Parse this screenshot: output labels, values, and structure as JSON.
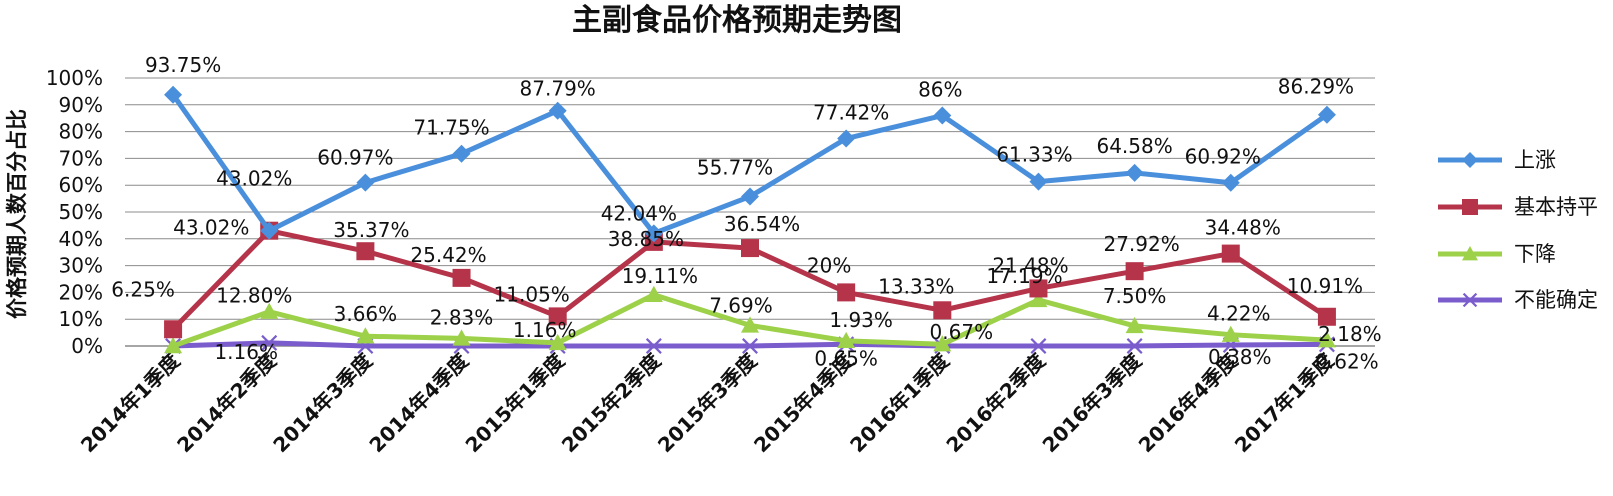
{
  "chart_data": {
    "type": "line",
    "title": "主副食品价格预期走势图",
    "xlabel": "",
    "ylabel": "价格预期人数百分占比",
    "ylim": [
      0,
      100
    ],
    "y_ticks": [
      "0%",
      "10%",
      "20%",
      "30%",
      "40%",
      "50%",
      "60%",
      "70%",
      "80%",
      "90%",
      "100%"
    ],
    "grid": true,
    "legend_position": "right",
    "categories": [
      "2014年1季度",
      "2014年2季度",
      "2014年3季度",
      "2014年4季度",
      "2015年1季度",
      "2015年2季度",
      "2015年3季度",
      "2015年4季度",
      "2016年1季度",
      "2016年2季度",
      "2016年3季度",
      "2016年4季度",
      "2017年1季度"
    ],
    "series": [
      {
        "name": "上涨",
        "color": "#4a8fdc",
        "marker": "diamond",
        "values": [
          93.75,
          43.02,
          60.97,
          71.75,
          87.79,
          42.04,
          55.77,
          77.42,
          86,
          61.33,
          64.58,
          60.92,
          86.29
        ],
        "labels": [
          "93.75%",
          "43.02%",
          "60.97%",
          "71.75%",
          "87.79%",
          "42.04%",
          "55.77%",
          "77.42%",
          "86%",
          "61.33%",
          "64.58%",
          "60.92%",
          "86.29%"
        ]
      },
      {
        "name": "基本持平",
        "color": "#b5344a",
        "marker": "square",
        "values": [
          6.25,
          43.02,
          35.37,
          25.42,
          11.05,
          38.85,
          36.54,
          20,
          13.33,
          21.48,
          27.92,
          34.48,
          10.91
        ],
        "labels": [
          "6.25%",
          "43.02%",
          "35.37%",
          "25.42%",
          "11.05%",
          "38.85%",
          "36.54%",
          "20%",
          "13.33%",
          "21.48%",
          "27.92%",
          "34.48%",
          "10.91%"
        ]
      },
      {
        "name": "下降",
        "color": "#9dd14a",
        "marker": "triangle",
        "values": [
          0,
          12.8,
          3.66,
          2.83,
          1.16,
          19.11,
          7.69,
          1.93,
          0.67,
          17.19,
          7.5,
          4.22,
          2.18
        ],
        "labels": [
          "",
          "12.80%",
          "3.66%",
          "2.83%",
          "1.16%",
          "19.11%",
          "7.69%",
          "1.93%",
          "0.67%",
          "17.19%",
          "7.50%",
          "4.22%",
          "2.18%"
        ]
      },
      {
        "name": "不能确定",
        "color": "#7a5ccc",
        "marker": "x",
        "values": [
          0,
          1.16,
          0,
          0,
          0,
          0,
          0,
          0.65,
          0,
          0,
          0,
          0.38,
          0.62
        ],
        "labels": [
          "",
          "1.16%",
          "",
          "",
          "",
          "",
          "",
          "0.65%",
          "",
          "",
          "",
          "0.38%",
          "0.62%"
        ]
      }
    ]
  }
}
